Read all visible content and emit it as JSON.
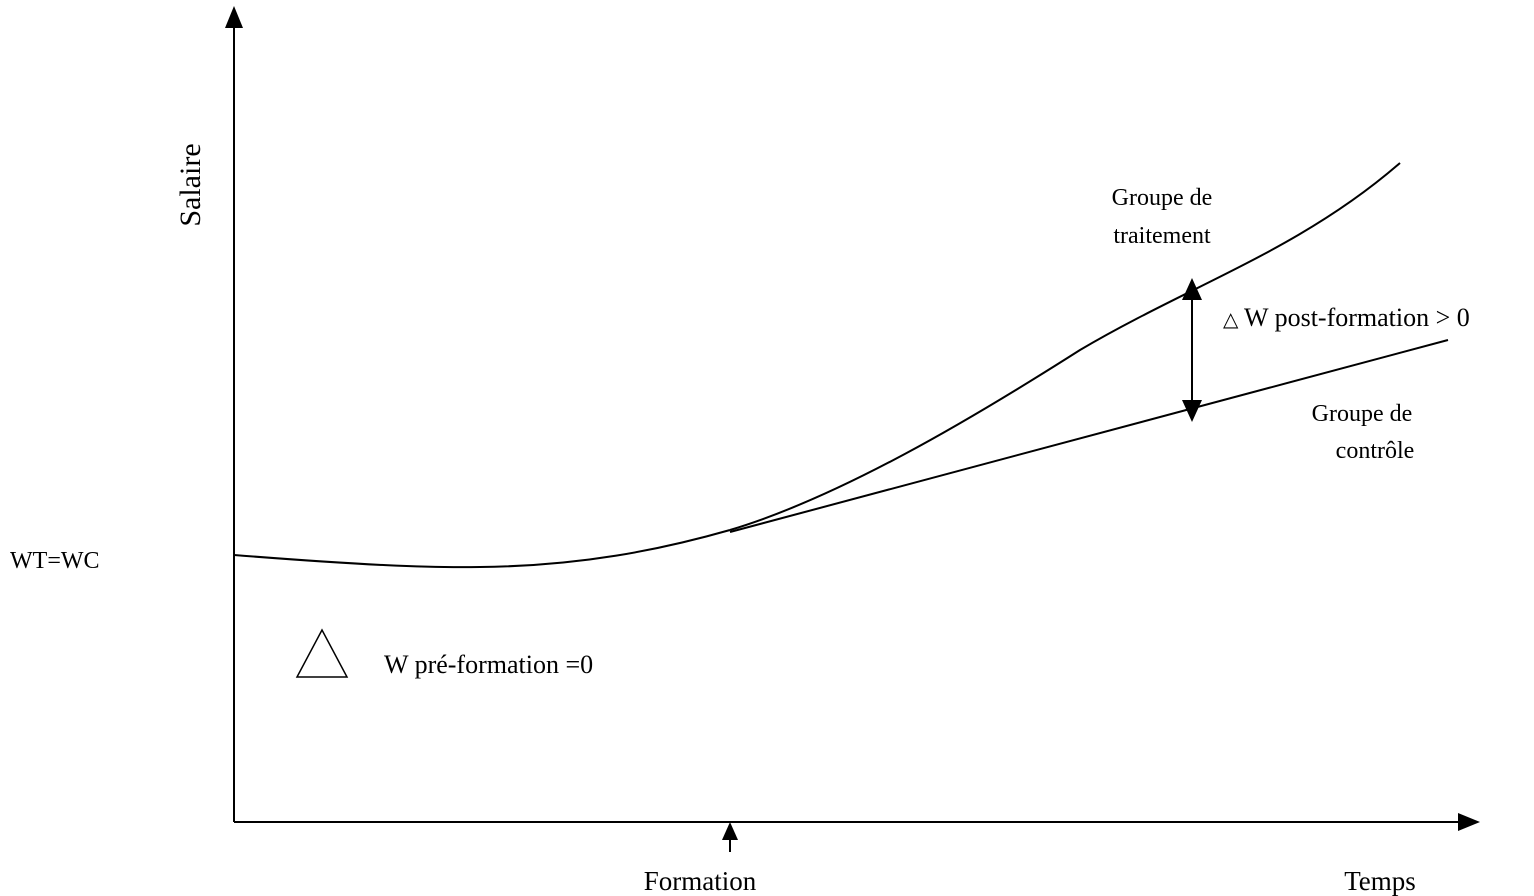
{
  "axes": {
    "y_label": "Salaire",
    "x_label": "Temps"
  },
  "markers": {
    "training": "Formation",
    "initial_wage": "WT=WC"
  },
  "curves": {
    "treatment_line1": "Groupe de",
    "treatment_line2": "traitement",
    "control_line1": "Groupe de",
    "control_line2": "contrôle"
  },
  "annotations": {
    "pre_symbol": "△",
    "pre": "W pré-formation =0",
    "post_symbol": "△",
    "post": "W post-formation > 0"
  }
}
